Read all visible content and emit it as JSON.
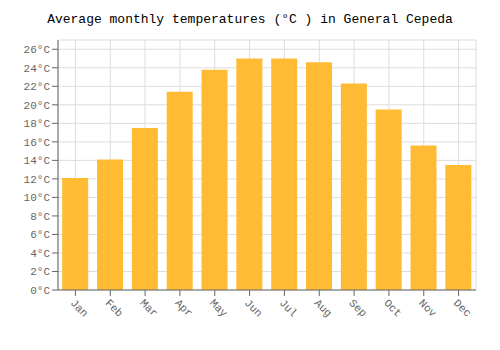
{
  "chart_data": {
    "type": "bar",
    "title": "Average monthly temperatures (°C ) in General Cepeda",
    "categories": [
      "Jan",
      "Feb",
      "Mar",
      "Apr",
      "May",
      "Jun",
      "Jul",
      "Aug",
      "Sep",
      "Oct",
      "Nov",
      "Dec"
    ],
    "values": [
      12.1,
      14.1,
      17.5,
      21.4,
      23.8,
      25.0,
      25.0,
      24.6,
      22.3,
      19.5,
      15.6,
      13.5
    ],
    "color": "#FFBB33",
    "ylim": [
      0,
      27
    ],
    "yticks": [
      {
        "value": 0,
        "label": "0°C"
      },
      {
        "value": 2,
        "label": "2°C"
      },
      {
        "value": 4,
        "label": "4°C"
      },
      {
        "value": 6,
        "label": "6°C"
      },
      {
        "value": 8,
        "label": "8°C"
      },
      {
        "value": 10,
        "label": "10°C"
      },
      {
        "value": 12,
        "label": "12°C"
      },
      {
        "value": 14,
        "label": "14°C"
      },
      {
        "value": 16,
        "label": "16°C"
      },
      {
        "value": 18,
        "label": "18°C"
      },
      {
        "value": 20,
        "label": "20°C"
      },
      {
        "value": 22,
        "label": "22°C"
      },
      {
        "value": 24,
        "label": "24°C"
      },
      {
        "value": 26,
        "label": "26°C"
      }
    ],
    "grid": true
  }
}
